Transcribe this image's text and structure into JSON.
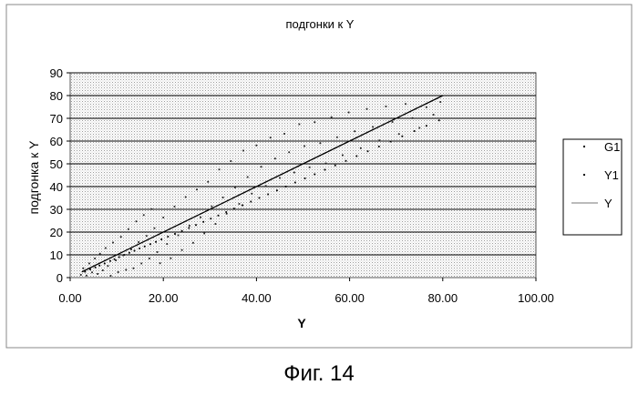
{
  "chart_data": {
    "type": "scatter",
    "title": "подгонки к Y",
    "xlabel": "Y",
    "ylabel": "подгонка к Y",
    "xlim": [
      0,
      100
    ],
    "ylim": [
      0,
      90
    ],
    "x_ticks": [
      "0.00",
      "20.00",
      "40.00",
      "60.00",
      "80.00",
      "100.00"
    ],
    "y_ticks": [
      "0",
      "10",
      "20",
      "30",
      "40",
      "50",
      "60",
      "70",
      "80",
      "90"
    ],
    "grid": true,
    "legend_position": "right",
    "legend": [
      "G1",
      "Y1",
      "Y"
    ],
    "series": [
      {
        "name": "G1",
        "style": "points",
        "values": [
          [
            3.2,
            2.6
          ],
          [
            4.3,
            3.6
          ],
          [
            5.4,
            4.5
          ],
          [
            6.3,
            5.3
          ],
          [
            7.4,
            6.2
          ],
          [
            8.6,
            7.3
          ],
          [
            9.5,
            8.1
          ],
          [
            10.5,
            9
          ],
          [
            11.6,
            10
          ],
          [
            12.7,
            10.9
          ],
          [
            13.8,
            11.8
          ],
          [
            14.9,
            12.8
          ],
          [
            16,
            13.7
          ],
          [
            17.2,
            14.7
          ],
          [
            18.4,
            15.7
          ],
          [
            19.6,
            16.8
          ],
          [
            21,
            18
          ],
          [
            22.5,
            19.2
          ],
          [
            24,
            20.5
          ],
          [
            25.5,
            21.8
          ],
          [
            27,
            23.1
          ],
          [
            28.6,
            24.5
          ],
          [
            30.2,
            25.9
          ],
          [
            31.8,
            27.3
          ],
          [
            33.5,
            28.8
          ],
          [
            35.2,
            30.3
          ],
          [
            37,
            31.8
          ],
          [
            38.8,
            33.4
          ],
          [
            40.6,
            35
          ],
          [
            42.5,
            36.6
          ],
          [
            44.4,
            38.3
          ],
          [
            46.3,
            40
          ],
          [
            48.3,
            41.8
          ],
          [
            50.4,
            43.6
          ],
          [
            52.5,
            45.4
          ],
          [
            54.7,
            47.4
          ],
          [
            56.9,
            49.3
          ],
          [
            59.2,
            51.3
          ],
          [
            61.5,
            53.4
          ],
          [
            63.9,
            55.5
          ],
          [
            66.3,
            57.6
          ],
          [
            68.8,
            59.8
          ],
          [
            71.3,
            62.1
          ],
          [
            73.9,
            64.4
          ],
          [
            76.5,
            66.7
          ],
          [
            79.2,
            69.1
          ]
        ]
      },
      {
        "name": "Y1",
        "style": "points",
        "values": [
          [
            2.3,
            1.2
          ],
          [
            2.8,
            4.1
          ],
          [
            3.5,
            0.9
          ],
          [
            4.1,
            6.2
          ],
          [
            4.7,
            2.3
          ],
          [
            5.3,
            8.4
          ],
          [
            5.9,
            1.6
          ],
          [
            6.4,
            10.5
          ],
          [
            7,
            3.2
          ],
          [
            7.6,
            13
          ],
          [
            8.1,
            5.1
          ],
          [
            8.7,
            0.8
          ],
          [
            9.2,
            15.4
          ],
          [
            9.8,
            7.6
          ],
          [
            10.3,
            2.4
          ],
          [
            10.9,
            17.9
          ],
          [
            11.4,
            9.8
          ],
          [
            12,
            3.4
          ],
          [
            12.5,
            21.3
          ],
          [
            13.1,
            12.4
          ],
          [
            13.6,
            4.1
          ],
          [
            14.2,
            24.7
          ],
          [
            14.7,
            15.6
          ],
          [
            15.3,
            6.2
          ],
          [
            15.8,
            27.5
          ],
          [
            16.4,
            18.3
          ],
          [
            17,
            8.4
          ],
          [
            17.5,
            30.1
          ],
          [
            18.1,
            21.7
          ],
          [
            18.7,
            11.2
          ],
          [
            19.3,
            6.3
          ],
          [
            20,
            26.4
          ],
          [
            20.8,
            14.8
          ],
          [
            21.6,
            8.5
          ],
          [
            22.4,
            31.2
          ],
          [
            23.2,
            18.6
          ],
          [
            24,
            12.1
          ],
          [
            24.8,
            35.4
          ],
          [
            25.6,
            22.8
          ],
          [
            26.4,
            15.3
          ],
          [
            27.2,
            38.7
          ],
          [
            28,
            26.5
          ],
          [
            28.8,
            19.4
          ],
          [
            29.6,
            42.1
          ],
          [
            30.4,
            31.3
          ],
          [
            31.2,
            23.6
          ],
          [
            32,
            47.5
          ],
          [
            32.8,
            35.2
          ],
          [
            33.6,
            28.1
          ],
          [
            34.5,
            51.2
          ],
          [
            35.4,
            39.6
          ],
          [
            36.3,
            32.4
          ],
          [
            37.2,
            55.8
          ],
          [
            38.1,
            44.2
          ],
          [
            39,
            36.9
          ],
          [
            40,
            58.1
          ],
          [
            41,
            48.7
          ],
          [
            42,
            40.3
          ],
          [
            43,
            61.5
          ],
          [
            44,
            52.3
          ],
          [
            45,
            43.8
          ],
          [
            46,
            63.2
          ],
          [
            47,
            55.1
          ],
          [
            48.1,
            46.2
          ],
          [
            49.2,
            67.4
          ],
          [
            50.3,
            57.8
          ],
          [
            51.4,
            48.5
          ],
          [
            52.5,
            68.3
          ],
          [
            53.7,
            59.1
          ],
          [
            54.9,
            50.2
          ],
          [
            56.1,
            70.5
          ],
          [
            57.3,
            61.7
          ],
          [
            58.5,
            53.8
          ],
          [
            59.8,
            72.6
          ],
          [
            61.1,
            64.3
          ],
          [
            62.4,
            56.9
          ],
          [
            63.7,
            74.1
          ],
          [
            65,
            66.2
          ],
          [
            66.4,
            60.3
          ],
          [
            67.8,
            75.2
          ],
          [
            69.2,
            68.4
          ],
          [
            70.6,
            63.1
          ],
          [
            72,
            76.3
          ],
          [
            73.5,
            70.1
          ],
          [
            75,
            65.8
          ],
          [
            76.5,
            74.9
          ],
          [
            78,
            71.6
          ],
          [
            79.5,
            77.2
          ]
        ]
      },
      {
        "name": "Y",
        "style": "line",
        "values": [
          [
            2.5,
            2.5
          ],
          [
            80,
            80
          ]
        ]
      }
    ],
    "caption": "Фиг. 14"
  }
}
